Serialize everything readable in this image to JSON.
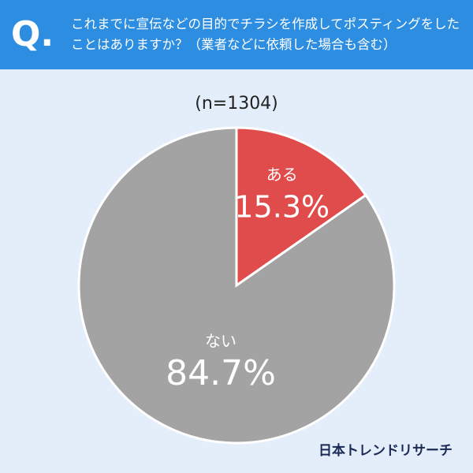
{
  "header": {
    "q_label": "Q.",
    "title": "これまでに宣伝などの目的でチラシを作成してポスティングをしたことはありますか？（業者などに依頼した場合も含む）"
  },
  "chart_data": {
    "type": "pie",
    "subtitle": "(n=1304)",
    "categories": [
      "ある",
      "ない"
    ],
    "values": [
      15.3,
      84.7
    ],
    "value_labels": [
      "15.3%",
      "84.7%"
    ],
    "colors": [
      "#e04b4b",
      "#a3a3a3"
    ]
  },
  "footer": {
    "brand": "日本トレンドリサーチ"
  }
}
